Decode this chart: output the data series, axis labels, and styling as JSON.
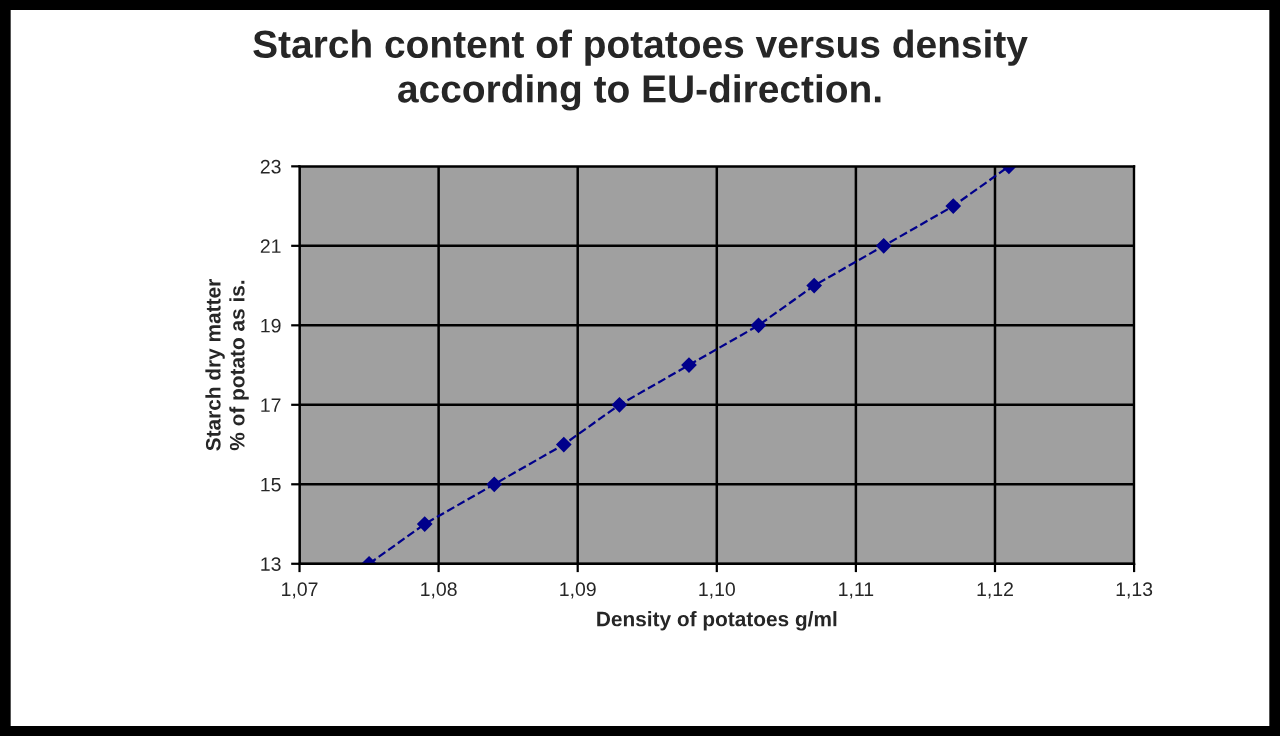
{
  "chart_data": {
    "type": "line",
    "title": "Starch content of potatoes versus density\naccording to EU-direction.",
    "xlabel": "Density of potatoes g/ml",
    "ylabel": "Starch dry matter\n% of potato as is.",
    "x": [
      1.075,
      1.079,
      1.084,
      1.089,
      1.093,
      1.098,
      1.103,
      1.107,
      1.112,
      1.117,
      1.121
    ],
    "series": [
      {
        "color": "#00008b",
        "values": [
          13,
          14,
          15,
          16,
          17,
          18,
          19,
          20,
          21,
          22,
          23
        ]
      }
    ],
    "xlim": [
      1.07,
      1.13
    ],
    "xticks": [
      {
        "value": 1.07,
        "label": "1,07"
      },
      {
        "value": 1.08,
        "label": "1,08"
      },
      {
        "value": 1.09,
        "label": "1,09"
      },
      {
        "value": 1.1,
        "label": "1,10"
      },
      {
        "value": 1.11,
        "label": "1,11"
      },
      {
        "value": 1.12,
        "label": "1,12"
      },
      {
        "value": 1.13,
        "label": "1,13"
      }
    ],
    "ylim": [
      13,
      23
    ],
    "yticks": [
      13,
      15,
      17,
      19,
      21,
      23
    ],
    "grid": true,
    "marker": "diamond",
    "line_style": "dashed"
  }
}
